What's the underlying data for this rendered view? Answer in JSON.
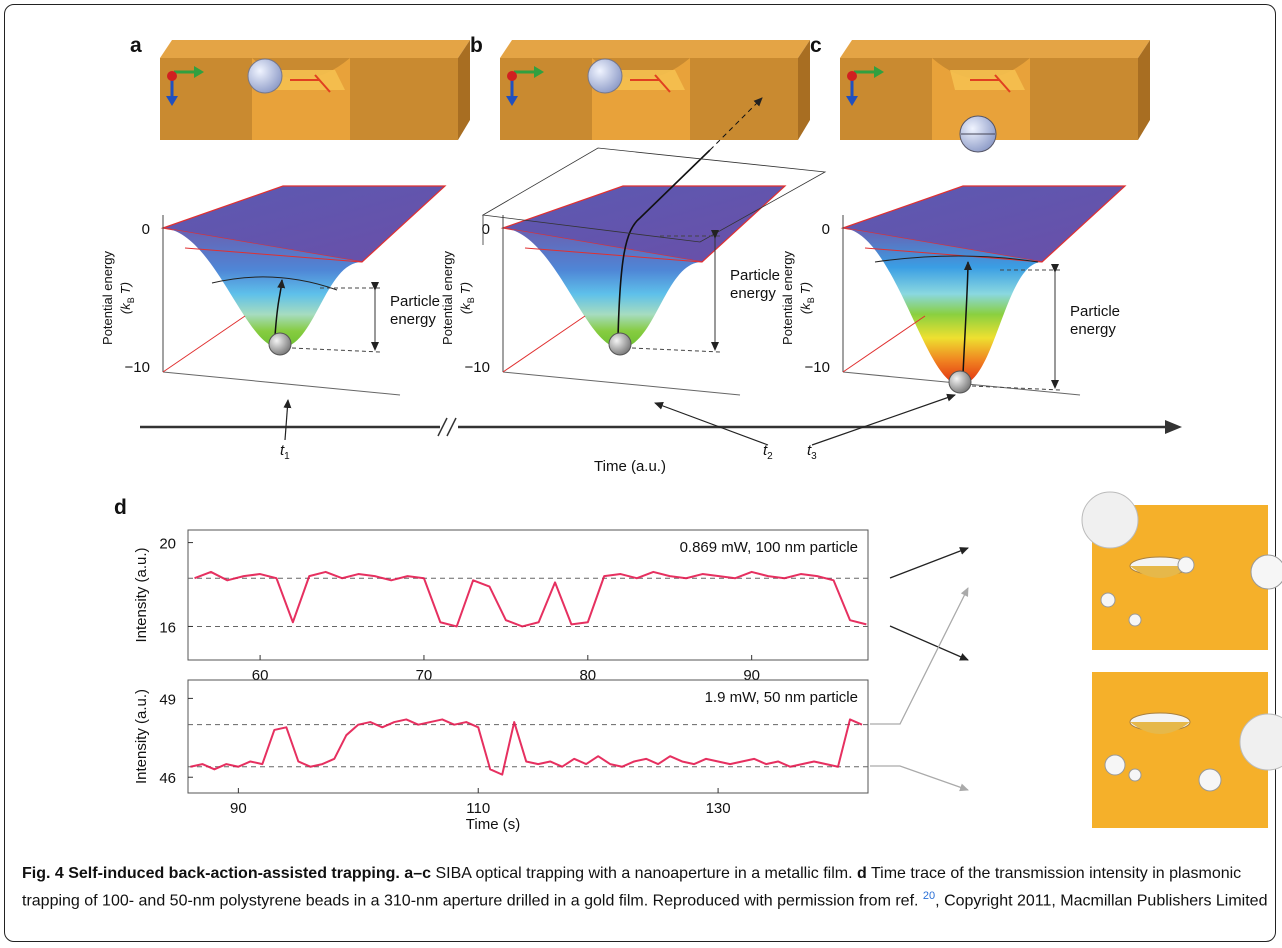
{
  "panels": [
    {
      "label": "a",
      "y_axis_label": "Potential energy",
      "y_axis_unit": {
        "pre": "(k",
        "sub": "B",
        "post": "T)"
      },
      "tick_top": "0",
      "tick_bottom": "−10",
      "annotation": [
        "Particle",
        "energy"
      ]
    },
    {
      "label": "b",
      "y_axis_label": "Potential energy",
      "y_axis_unit": {
        "pre": "(k",
        "sub": "B",
        "post": "T)"
      },
      "tick_top": "0",
      "tick_bottom": "−10",
      "annotation": [
        "Particle",
        "energy"
      ]
    },
    {
      "label": "c",
      "y_axis_label": "Potential energy",
      "y_axis_unit": {
        "pre": "(k",
        "sub": "B",
        "post": "T)"
      },
      "tick_top": "0",
      "tick_bottom": "−10",
      "annotation": [
        "Particle",
        "energy"
      ]
    }
  ],
  "timeline": {
    "label": "Time (a.u.)",
    "marks": [
      {
        "main": "t",
        "sub": "1"
      },
      {
        "main": "t",
        "sub": "2"
      },
      {
        "main": "t",
        "sub": "3"
      }
    ]
  },
  "panel_d_label": "d",
  "chart_data": [
    {
      "type": "line",
      "annotation": "0.869 mW, 100 nm particle",
      "x_label": "Time (s)",
      "y_label": "Intensity (a.u.)",
      "x": [
        56,
        57,
        58,
        59,
        60,
        61,
        62,
        63,
        64,
        65,
        66,
        67,
        68,
        69,
        70,
        71,
        72,
        73,
        74,
        75,
        76,
        77,
        78,
        79,
        80,
        81,
        82,
        83,
        84,
        85,
        86,
        87,
        88,
        89,
        90,
        91,
        92,
        93,
        94,
        95,
        96,
        97
      ],
      "series": [
        {
          "color": "#e3194f",
          "values": [
            18.3,
            18.6,
            18.2,
            18.4,
            18.5,
            18.3,
            16.2,
            18.4,
            18.6,
            18.3,
            18.5,
            18.4,
            18.2,
            18.4,
            18.3,
            16.2,
            16.0,
            18.2,
            17.9,
            16.3,
            16.0,
            16.2,
            18.1,
            16.1,
            16.2,
            18.4,
            18.5,
            18.3,
            18.6,
            18.4,
            18.3,
            18.5,
            18.4,
            18.3,
            18.6,
            18.4,
            18.3,
            18.5,
            18.4,
            18.2,
            16.3,
            16.1
          ]
        }
      ],
      "reference_lines": [
        18.3,
        16.0
      ],
      "xlim": [
        55.6,
        97.1
      ],
      "ylim": [
        14.4,
        20.6
      ],
      "xticks": [
        60,
        70,
        80,
        90
      ],
      "yticks": [
        16,
        20
      ]
    },
    {
      "type": "line",
      "annotation": "1.9 mW, 50 nm particle",
      "x_label": "Time (s)",
      "y_label": "Intensity (a.u.)",
      "x": [
        86,
        87,
        88,
        89,
        90,
        91,
        92,
        93,
        94,
        95,
        96,
        97,
        98,
        99,
        100,
        101,
        102,
        103,
        104,
        105,
        106,
        107,
        108,
        109,
        110,
        111,
        112,
        113,
        114,
        115,
        116,
        117,
        118,
        119,
        120,
        121,
        122,
        123,
        124,
        125,
        126,
        127,
        128,
        129,
        130,
        131,
        132,
        133,
        134,
        135,
        136,
        137,
        138,
        139,
        140,
        141,
        142
      ],
      "series": [
        {
          "color": "#e3194f",
          "values": [
            46.4,
            46.5,
            46.3,
            46.5,
            46.4,
            46.6,
            46.5,
            47.8,
            47.9,
            46.6,
            46.4,
            46.5,
            46.7,
            47.6,
            48.0,
            48.1,
            47.9,
            48.1,
            48.2,
            48.0,
            48.1,
            48.2,
            48.0,
            48.1,
            47.9,
            46.3,
            46.1,
            48.1,
            46.6,
            46.5,
            46.6,
            46.4,
            46.7,
            46.5,
            46.8,
            46.5,
            46.4,
            46.6,
            46.7,
            46.5,
            46.8,
            46.6,
            46.5,
            46.7,
            46.6,
            46.5,
            46.6,
            46.7,
            46.5,
            46.6,
            46.4,
            46.5,
            46.6,
            46.5,
            46.4,
            48.2,
            48.0
          ]
        }
      ],
      "reference_lines": [
        48.0,
        46.4
      ],
      "xlim": [
        85.8,
        142.5
      ],
      "ylim": [
        45.4,
        49.7
      ],
      "xticks": [
        90,
        110,
        130
      ],
      "yticks": [
        46,
        49
      ]
    }
  ],
  "caption": {
    "fig": "Fig. 4 Self-induced back-action-assisted trapping.",
    "part1_label": "a–c",
    "part1_text": "SIBA optical trapping with a nanoaperture in a metallic film.",
    "part2_label": "d",
    "part2_text": "Time trace of the transmission intensity in plasmonic trapping of 100- and 50-nm polystyrene beads in a 310-nm aperture drilled in a gold film. Reproduced with permission from ref.",
    "ref": "20",
    "tail": ", Copyright 2011, Macmillan Publishers Limited"
  }
}
